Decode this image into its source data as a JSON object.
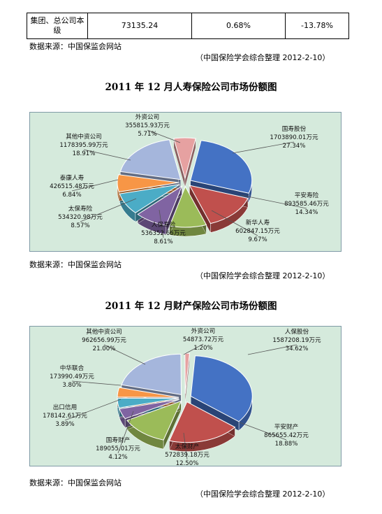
{
  "top_table": {
    "cells": [
      "集团、总公司本级",
      "73135.24",
      "0.68%",
      "-13.78%"
    ]
  },
  "source_note": "数据来源：中国保监会网站",
  "compile_note": "（中国保险学会综合整理 2012-2-10）",
  "chart_data": [
    {
      "type": "pie",
      "title": "2011 年 12 月人寿保险公司市场份额图",
      "unit": "万元",
      "slices": [
        {
          "name": "国寿股份",
          "value": 1703890.01,
          "value_text": "1703890.01万元",
          "percent": "27.34%",
          "color": "#4472c4"
        },
        {
          "name": "平安寿险",
          "value": 893585.46,
          "value_text": "893585.46万元",
          "percent": "14.34%",
          "color": "#c0504d"
        },
        {
          "name": "新华人寿",
          "value": 602847.15,
          "value_text": "602847.15万元",
          "percent": "9.67%",
          "color": "#9bbb59"
        },
        {
          "name": "人保寿险",
          "value": 536352.66,
          "value_text": "536352.66万元",
          "percent": "8.61%",
          "color": "#8064a2"
        },
        {
          "name": "太保寿险",
          "value": 534320.98,
          "value_text": "534320.98万元",
          "percent": "8.57%",
          "color": "#4bacc6"
        },
        {
          "name": "泰康人寿",
          "value": 426515.48,
          "value_text": "426515.48万元",
          "percent": "6.84%",
          "color": "#f79646"
        },
        {
          "name": "其他中资公司",
          "value": 1178395.99,
          "value_text": "1178395.99万元",
          "percent": "18.91%",
          "color": "#a5b6dc"
        },
        {
          "name": "外资公司",
          "value": 355815.93,
          "value_text": "355815.93万元",
          "percent": "5.71%",
          "color": "#e6a1a1"
        }
      ]
    },
    {
      "type": "pie",
      "title": "2011 年 12 月财产保险公司市场份额图",
      "unit": "万元",
      "slices": [
        {
          "name": "人保股份",
          "value": 1587208.19,
          "value_text": "1587208.19万元",
          "percent": "34.62%",
          "color": "#4472c4"
        },
        {
          "name": "平安财产",
          "value": 865655.42,
          "value_text": "865655.42万元",
          "percent": "18.88%",
          "color": "#c0504d"
        },
        {
          "name": "太保财产",
          "value": 572839.18,
          "value_text": "572839.18万元",
          "percent": "12.50%",
          "color": "#9bbb59"
        },
        {
          "name": "国寿财产",
          "value": 189055.01,
          "value_text": "189055.01万元",
          "percent": "4.12%",
          "color": "#8064a2"
        },
        {
          "name": "出口信用",
          "value": 178142.61,
          "value_text": "178142.61万元",
          "percent": "3.89%",
          "color": "#4bacc6"
        },
        {
          "name": "中华联合",
          "value": 173990.49,
          "value_text": "173990.49万元",
          "percent": "3.80%",
          "color": "#f79646"
        },
        {
          "name": "其他中资公司",
          "value": 962656.99,
          "value_text": "962656.99万元",
          "percent": "21.00%",
          "color": "#a5b6dc"
        },
        {
          "name": "外资公司",
          "value": 54873.72,
          "value_text": "54873.72万元",
          "percent": "1.20%",
          "color": "#e6a1a1"
        }
      ]
    }
  ]
}
